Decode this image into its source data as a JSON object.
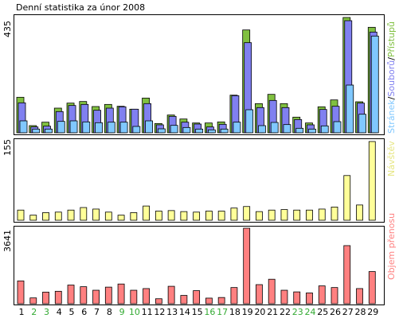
{
  "chart_data": [
    {
      "type": "bar",
      "title": "Denní statistika za únor 2008",
      "ymax_label": "435",
      "ylim": [
        0,
        435
      ],
      "legend": [
        "Stránek",
        "Souborů",
        "Přístupů"
      ],
      "colors": {
        "pages": "#80c8ff",
        "files": "#8080f0",
        "hits": "#80c040"
      },
      "categories": [
        "1",
        "2",
        "3",
        "4",
        "5",
        "6",
        "7",
        "8",
        "9",
        "10",
        "11",
        "12",
        "13",
        "14",
        "15",
        "16",
        "17",
        "18",
        "19",
        "20",
        "21",
        "22",
        "23",
        "24",
        "25",
        "26",
        "27",
        "28",
        "29"
      ],
      "series": [
        {
          "name": "Přístupů",
          "values": [
            134,
            27,
            40,
            93,
            112,
            118,
            99,
            107,
            100,
            89,
            131,
            35,
            67,
            52,
            37,
            37,
            41,
            142,
            388,
            110,
            145,
            110,
            59,
            37,
            98,
            124,
            435,
            117,
            398
          ]
        },
        {
          "name": "Souborů",
          "values": [
            113,
            22,
            25,
            80,
            103,
            107,
            85,
            93,
            98,
            89,
            110,
            30,
            62,
            40,
            33,
            22,
            32,
            140,
            340,
            95,
            122,
            95,
            50,
            30,
            88,
            100,
            423,
            112,
            380
          ]
        },
        {
          "name": "Stránek",
          "values": [
            45,
            14,
            14,
            43,
            45,
            41,
            38,
            40,
            40,
            24,
            45,
            15,
            28,
            20,
            14,
            11,
            14,
            40,
            87,
            27,
            39,
            31,
            17,
            14,
            26,
            42,
            180,
            70,
            365
          ]
        }
      ]
    },
    {
      "type": "bar",
      "ymax_label": "155",
      "ylim": [
        0,
        155
      ],
      "legend": [
        "Návštěv"
      ],
      "colors": {
        "visits": "#ffff99"
      },
      "categories": [
        "1",
        "2",
        "3",
        "4",
        "5",
        "6",
        "7",
        "8",
        "9",
        "10",
        "11",
        "12",
        "13",
        "14",
        "15",
        "16",
        "17",
        "18",
        "19",
        "20",
        "21",
        "22",
        "23",
        "24",
        "25",
        "26",
        "27",
        "28",
        "29"
      ],
      "series": [
        {
          "name": "Návštěv",
          "values": [
            20,
            10,
            15,
            16,
            20,
            25,
            22,
            16,
            10,
            15,
            28,
            18,
            19,
            17,
            16,
            18,
            18,
            24,
            27,
            17,
            20,
            21,
            20,
            20,
            22,
            26,
            88,
            30,
            155
          ]
        }
      ]
    },
    {
      "type": "bar",
      "ymax_label": "3641",
      "ylim": [
        0,
        3641
      ],
      "legend": [
        "Objem přenosu"
      ],
      "colors": {
        "volume": "#ff8080"
      },
      "categories": [
        "1",
        "2",
        "3",
        "4",
        "5",
        "6",
        "7",
        "8",
        "9",
        "10",
        "11",
        "12",
        "13",
        "14",
        "15",
        "16",
        "17",
        "18",
        "19",
        "20",
        "21",
        "22",
        "23",
        "24",
        "25",
        "26",
        "27",
        "28",
        "29"
      ],
      "series": [
        {
          "name": "Objem přenosu",
          "values": [
            1100,
            280,
            560,
            600,
            900,
            820,
            650,
            800,
            950,
            650,
            730,
            240,
            840,
            400,
            630,
            270,
            300,
            780,
            3641,
            920,
            1180,
            650,
            570,
            520,
            860,
            780,
            2800,
            730,
            1550
          ]
        }
      ]
    }
  ],
  "x_label_colors": [
    "#000000",
    "#33aa33",
    "#33aa33",
    "#000000",
    "#000000",
    "#000000",
    "#000000",
    "#000000",
    "#33aa33",
    "#33aa33",
    "#000000",
    "#000000",
    "#000000",
    "#000000",
    "#000000",
    "#33aa33",
    "#33aa33",
    "#000000",
    "#000000",
    "#000000",
    "#000000",
    "#000000",
    "#33aa33",
    "#33aa33",
    "#000000",
    "#000000",
    "#000000",
    "#000000",
    "#000000"
  ]
}
